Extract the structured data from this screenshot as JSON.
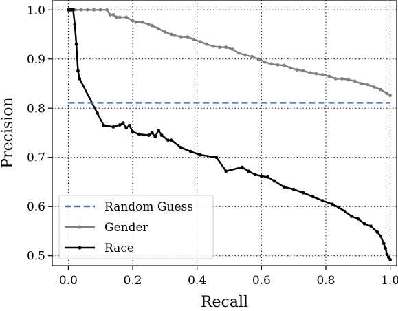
{
  "chart_data": {
    "type": "line",
    "xlabel": "Recall",
    "ylabel": "Precision",
    "xlim": [
      -0.05,
      1.02
    ],
    "ylim": [
      0.48,
      1.02
    ],
    "xticks": [
      "0.0",
      "0.2",
      "0.4",
      "0.6",
      "0.8",
      "1.0"
    ],
    "yticks": [
      "0.5",
      "0.6",
      "0.7",
      "0.8",
      "0.9",
      "1.0"
    ],
    "grid": true,
    "grid_style": "dotted",
    "legend_position": "lower-left",
    "series": [
      {
        "name": "Random Guess",
        "color": "#4c72b0",
        "style": "dashed",
        "markers": false,
        "x": [
          0.0,
          1.0
        ],
        "y": [
          0.811,
          0.811
        ]
      },
      {
        "name": "Gender",
        "color": "#808080",
        "style": "solid",
        "markers": true,
        "x": [
          0.0,
          0.01,
          0.02,
          0.04,
          0.06,
          0.08,
          0.1,
          0.12,
          0.13,
          0.14,
          0.15,
          0.16,
          0.18,
          0.2,
          0.21,
          0.23,
          0.25,
          0.26,
          0.28,
          0.3,
          0.32,
          0.33,
          0.35,
          0.37,
          0.39,
          0.41,
          0.43,
          0.45,
          0.47,
          0.49,
          0.51,
          0.53,
          0.55,
          0.57,
          0.59,
          0.61,
          0.63,
          0.65,
          0.67,
          0.69,
          0.71,
          0.73,
          0.75,
          0.77,
          0.79,
          0.81,
          0.83,
          0.85,
          0.87,
          0.89,
          0.91,
          0.93,
          0.95,
          0.97,
          0.99,
          1.0
        ],
        "y": [
          1.0,
          1.0,
          1.0,
          1.0,
          1.0,
          1.0,
          1.0,
          1.0,
          0.99,
          0.99,
          0.985,
          0.985,
          0.985,
          0.978,
          0.975,
          0.975,
          0.97,
          0.968,
          0.962,
          0.955,
          0.95,
          0.948,
          0.945,
          0.945,
          0.94,
          0.935,
          0.93,
          0.926,
          0.924,
          0.924,
          0.92,
          0.912,
          0.908,
          0.905,
          0.9,
          0.894,
          0.89,
          0.888,
          0.887,
          0.882,
          0.878,
          0.876,
          0.872,
          0.87,
          0.868,
          0.865,
          0.86,
          0.86,
          0.858,
          0.855,
          0.85,
          0.848,
          0.843,
          0.838,
          0.83,
          0.826
        ]
      },
      {
        "name": "Race",
        "color": "#000000",
        "style": "solid",
        "markers": true,
        "x": [
          0.0,
          0.005,
          0.01,
          0.015,
          0.02,
          0.025,
          0.03,
          0.035,
          0.09,
          0.11,
          0.14,
          0.16,
          0.17,
          0.18,
          0.19,
          0.2,
          0.22,
          0.25,
          0.26,
          0.27,
          0.28,
          0.29,
          0.31,
          0.32,
          0.35,
          0.38,
          0.41,
          0.46,
          0.49,
          0.54,
          0.56,
          0.58,
          0.6,
          0.62,
          0.64,
          0.67,
          0.7,
          0.73,
          0.76,
          0.79,
          0.82,
          0.84,
          0.86,
          0.88,
          0.9,
          0.92,
          0.94,
          0.96,
          0.97,
          0.98,
          0.985,
          0.99,
          0.995,
          1.0
        ],
        "y": [
          1.0,
          1.0,
          1.0,
          1.0,
          0.97,
          0.93,
          0.876,
          0.86,
          0.79,
          0.765,
          0.762,
          0.766,
          0.77,
          0.76,
          0.765,
          0.752,
          0.747,
          0.745,
          0.75,
          0.742,
          0.755,
          0.745,
          0.735,
          0.735,
          0.72,
          0.712,
          0.705,
          0.7,
          0.672,
          0.68,
          0.672,
          0.665,
          0.662,
          0.66,
          0.652,
          0.64,
          0.635,
          0.628,
          0.62,
          0.612,
          0.605,
          0.598,
          0.59,
          0.58,
          0.575,
          0.565,
          0.56,
          0.548,
          0.54,
          0.525,
          0.515,
          0.503,
          0.497,
          0.492
        ]
      }
    ]
  }
}
